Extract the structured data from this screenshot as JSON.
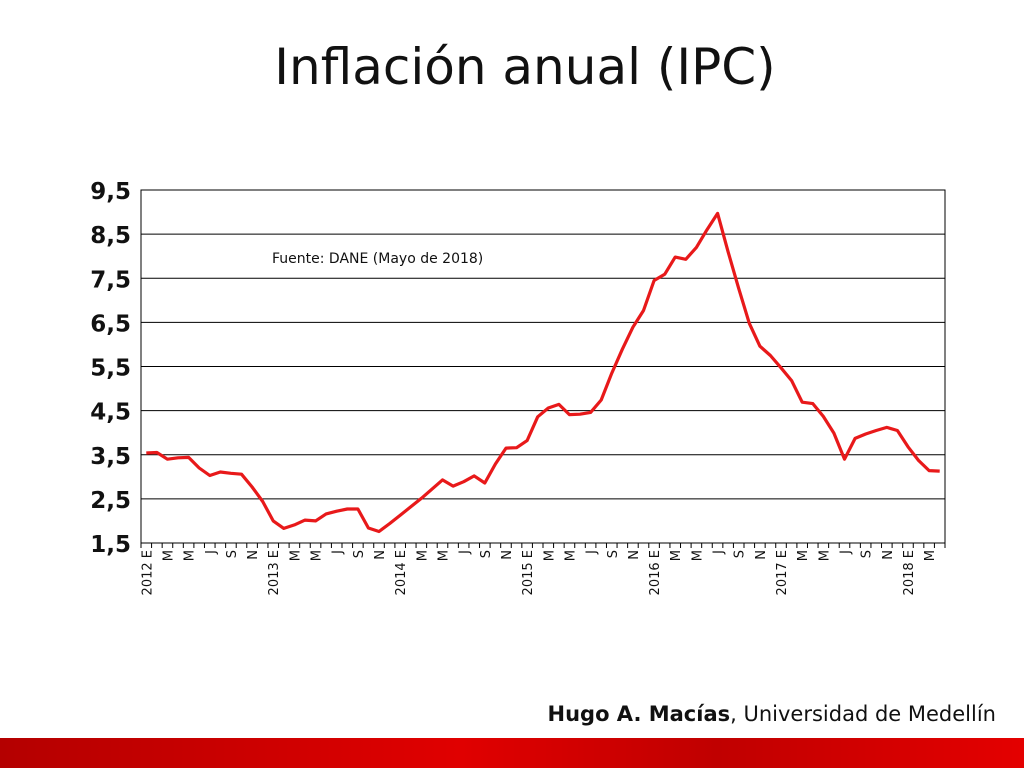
{
  "slide": {
    "title": "Inflación anual (IPC)",
    "author": "Hugo A. Macías",
    "affiliation": ", Universidad de Medellín"
  },
  "chart_data": {
    "type": "line",
    "title": "",
    "annotation": "Fuente: DANE (Mayo de 2018)",
    "xlabel": "",
    "ylabel": "",
    "ylim": [
      1.5,
      9.5
    ],
    "yticks": [
      "9,5",
      "8,5",
      "7,5",
      "6,5",
      "5,5",
      "4,5",
      "3,5",
      "2,5",
      "1,5"
    ],
    "grid": true,
    "line_color": "#e8191a",
    "x_labels": [
      "2012 E",
      "M",
      "M",
      "J",
      "S",
      "N",
      "2013 E",
      "M",
      "M",
      "J",
      "S",
      "N",
      "2014 E",
      "M",
      "M",
      "J",
      "S",
      "N",
      "2015 E",
      "M",
      "M",
      "J",
      "S",
      "N",
      "2016 E",
      "M",
      "M",
      "J",
      "S",
      "N",
      "2017 E",
      "M",
      "M",
      "J",
      "S",
      "N",
      "2018 E",
      "M"
    ],
    "series": [
      {
        "values": [
          3.54,
          3.55,
          3.4,
          3.43,
          3.44,
          3.2,
          3.03,
          3.11,
          3.08,
          3.06,
          2.77,
          2.44,
          2.0,
          1.83,
          1.91,
          2.02,
          2.0,
          2.16,
          2.22,
          2.27,
          2.27,
          1.84,
          1.76,
          1.94,
          2.13,
          2.32,
          2.51,
          2.72,
          2.93,
          2.79,
          2.89,
          3.02,
          2.86,
          3.29,
          3.65,
          3.66,
          3.82,
          4.36,
          4.56,
          4.64,
          4.41,
          4.42,
          4.46,
          4.74,
          5.35,
          5.89,
          6.39,
          6.77,
          7.45,
          7.59,
          7.98,
          7.93,
          8.2,
          8.6,
          8.97,
          8.1,
          7.27,
          6.48,
          5.96,
          5.75,
          5.47,
          5.18,
          4.69,
          4.66,
          4.37,
          3.99,
          3.4,
          3.87,
          3.97,
          4.05,
          4.12,
          4.05,
          3.68,
          3.37,
          3.14,
          3.13
        ]
      }
    ]
  }
}
